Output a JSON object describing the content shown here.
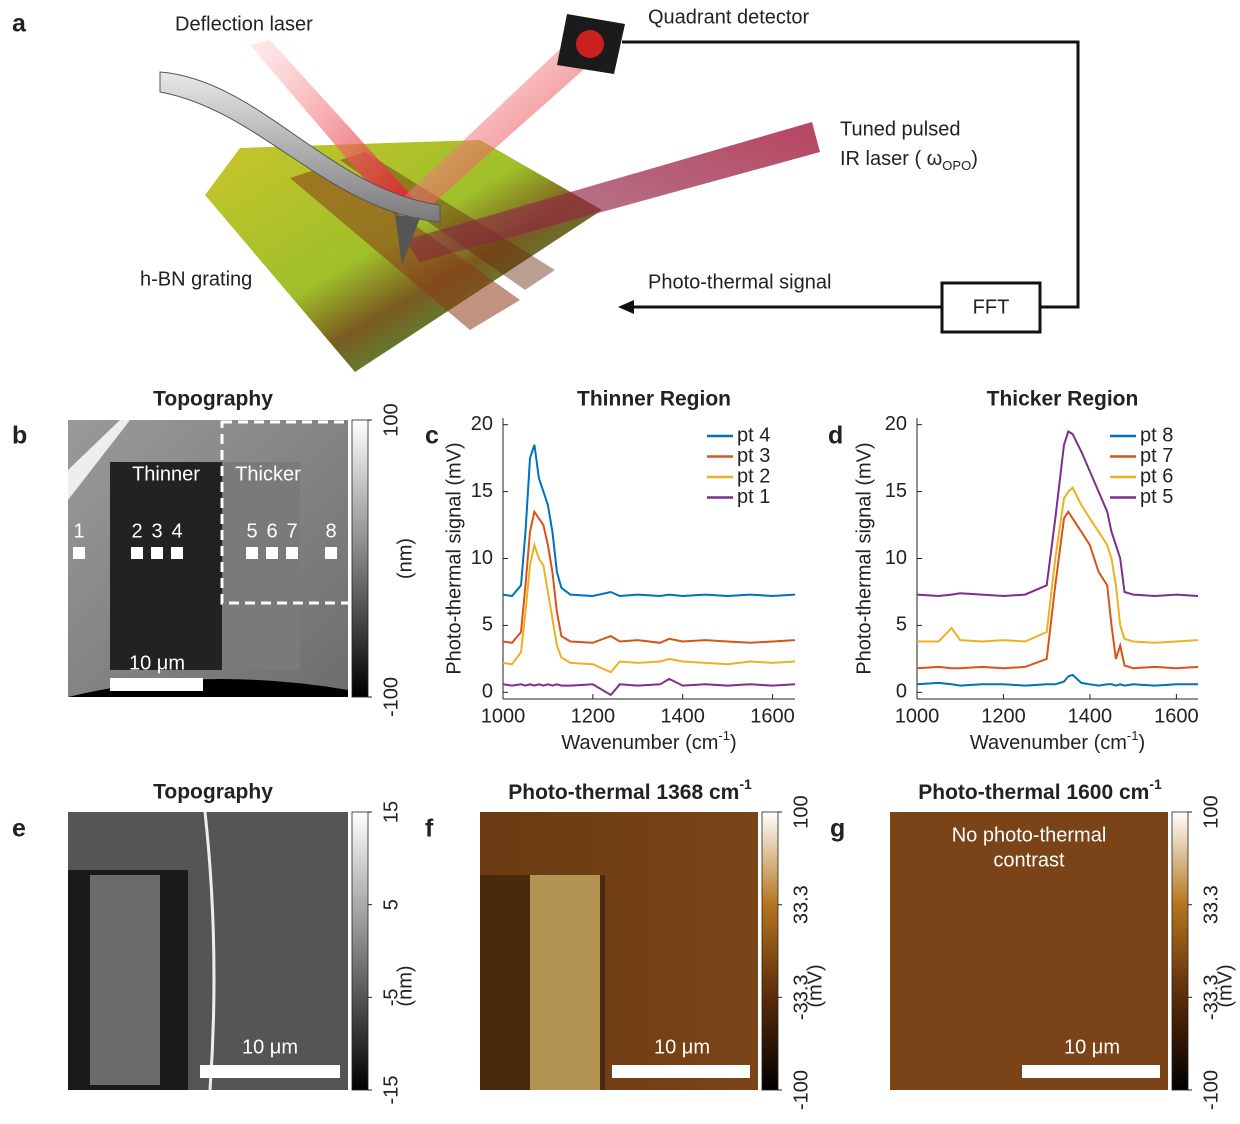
{
  "panel_a": {
    "letter": "a",
    "deflection_laser": "Deflection laser",
    "quadrant_detector": "Quadrant detector",
    "ir_laser_line1": "Tuned pulsed",
    "ir_laser_line2": "IR laser ( ω",
    "ir_laser_sub": "OPO",
    "ir_laser_end": ")",
    "sample": "h-BN grating",
    "signal": "Photo-thermal signal",
    "fft": "FFT"
  },
  "panel_b": {
    "letter": "b",
    "title": "Topography",
    "thinner": "Thinner",
    "thicker": "Thicker",
    "points": [
      "1",
      "2",
      "3",
      "4",
      "5",
      "6",
      "7",
      "8"
    ],
    "scale_bar": "10 μm",
    "colorbar": {
      "lim": [
        -100,
        100
      ],
      "ticks": [
        100,
        -100
      ],
      "label": "(nm)",
      "colors": [
        "#000000",
        "#ffffff"
      ]
    }
  },
  "chart_data": [
    {
      "type": "line",
      "panel_label": "c",
      "title": "Thinner Region",
      "ylabel": "Photo-thermal signal (mV)",
      "xlabel": "Wavenumber (cm",
      "xlabel_sup": "-1",
      "xlabel_end": ")",
      "x": [
        1000,
        1020,
        1040,
        1050,
        1060,
        1070,
        1080,
        1090,
        1100,
        1110,
        1120,
        1130,
        1150,
        1200,
        1240,
        1260,
        1300,
        1350,
        1370,
        1400,
        1450,
        1500,
        1550,
        1600,
        1650
      ],
      "series": [
        {
          "name": "pt 4",
          "color": "#0072bd",
          "values": [
            7.3,
            7.2,
            8,
            12,
            17.5,
            18.5,
            16,
            15,
            14,
            12,
            9,
            7.8,
            7.3,
            7.2,
            7.5,
            7.2,
            7.3,
            7.2,
            7.3,
            7.2,
            7.3,
            7.2,
            7.3,
            7.2,
            7.3
          ]
        },
        {
          "name": "pt 3",
          "color": "#d95319",
          "values": [
            3.8,
            3.7,
            4.5,
            8,
            12,
            13.5,
            13,
            12.5,
            11,
            9,
            6,
            4.2,
            3.8,
            3.7,
            4.2,
            3.8,
            3.9,
            3.7,
            4,
            3.8,
            3.9,
            3.8,
            3.7,
            3.8,
            3.9
          ]
        },
        {
          "name": "pt 2",
          "color": "#edb120",
          "values": [
            2.2,
            2.1,
            3,
            6,
            9.5,
            11,
            10,
            9.5,
            7.5,
            5.5,
            3.5,
            2.6,
            2.2,
            2.1,
            1.5,
            2.3,
            2.2,
            2.3,
            2.5,
            2.3,
            2.2,
            2.1,
            2.3,
            2.2,
            2.3
          ]
        },
        {
          "name": "pt 1",
          "color": "#7e2f8e",
          "values": [
            0.6,
            0.5,
            0.6,
            0.5,
            0.6,
            0.5,
            0.6,
            0.5,
            0.6,
            0.5,
            0.6,
            0.5,
            0.5,
            0.6,
            -0.2,
            0.6,
            0.5,
            0.6,
            1,
            0.5,
            0.6,
            0.5,
            0.6,
            0.5,
            0.6
          ]
        }
      ],
      "xlim": [
        1000,
        1650
      ],
      "ylim": [
        -0.5,
        20.5
      ],
      "xticks": [
        1000,
        1200,
        1400,
        1600
      ],
      "yticks": [
        0,
        5,
        10,
        15,
        20
      ],
      "legend": "upper right"
    },
    {
      "type": "line",
      "panel_label": "d",
      "title": "Thicker Region",
      "ylabel": "Photo-thermal signal (mV)",
      "xlabel": "Wavenumber (cm",
      "xlabel_sup": "-1",
      "xlabel_end": ")",
      "x": [
        1000,
        1050,
        1080,
        1100,
        1150,
        1200,
        1250,
        1300,
        1320,
        1340,
        1350,
        1360,
        1380,
        1400,
        1420,
        1440,
        1450,
        1460,
        1470,
        1480,
        1500,
        1550,
        1600,
        1650
      ],
      "series": [
        {
          "name": "pt 8",
          "color": "#0072bd",
          "values": [
            0.6,
            0.7,
            0.6,
            0.5,
            0.6,
            0.6,
            0.5,
            0.6,
            0.6,
            0.8,
            1.2,
            1.3,
            0.7,
            0.6,
            0.5,
            0.6,
            0.6,
            0.5,
            0.6,
            0.5,
            0.6,
            0.5,
            0.6,
            0.6
          ]
        },
        {
          "name": "pt 7",
          "color": "#d95319",
          "values": [
            1.8,
            1.9,
            1.8,
            1.8,
            1.9,
            1.8,
            1.9,
            2.5,
            8,
            13,
            13.5,
            13,
            12,
            11,
            9,
            8,
            5,
            2.5,
            3.5,
            2,
            1.8,
            1.9,
            1.8,
            1.9
          ]
        },
        {
          "name": "pt 6",
          "color": "#edb120",
          "values": [
            3.8,
            3.8,
            4.8,
            3.9,
            3.8,
            3.9,
            3.8,
            4.5,
            10,
            14.5,
            15,
            15.3,
            14,
            13,
            12,
            11,
            10,
            8,
            5,
            4,
            3.8,
            3.7,
            3.8,
            3.9
          ]
        },
        {
          "name": "pt 5",
          "color": "#7e2f8e",
          "values": [
            7.3,
            7.2,
            7.3,
            7.4,
            7.3,
            7.2,
            7.3,
            8,
            13,
            18.5,
            19.5,
            19.3,
            18,
            16.5,
            15,
            13.5,
            12,
            11,
            10,
            7.5,
            7.3,
            7.2,
            7.3,
            7.2
          ]
        }
      ],
      "xlim": [
        1000,
        1650
      ],
      "ylim": [
        -0.5,
        20.5
      ],
      "xticks": [
        1000,
        1200,
        1400,
        1600
      ],
      "yticks": [
        0,
        5,
        10,
        15,
        20
      ],
      "legend": "upper right"
    }
  ],
  "panel_e": {
    "letter": "e",
    "title": "Topography",
    "scale_bar": "10 μm",
    "colorbar": {
      "lim": [
        -15,
        15
      ],
      "ticks": [
        15,
        5,
        -5,
        -15
      ],
      "label": "(nm)",
      "colors": [
        "#000000",
        "#ffffff"
      ]
    }
  },
  "panel_f": {
    "letter": "f",
    "title": "Photo-thermal 1368 cm",
    "title_sup": "-1",
    "scale_bar": "10 μm",
    "colorbar": {
      "lim": [
        -100,
        100
      ],
      "ticks": [
        100,
        33.3,
        -33.3,
        -100
      ],
      "label": "(mV)",
      "colors": [
        "#000000",
        "#5a2a0a",
        "#b5751e",
        "#ffffff"
      ]
    }
  },
  "panel_g": {
    "letter": "g",
    "title": "Photo-thermal 1600 cm",
    "title_sup": "-1",
    "note_line1": "No photo-thermal",
    "note_line2": "contrast",
    "scale_bar": "10 μm",
    "colorbar": {
      "lim": [
        -100,
        100
      ],
      "ticks": [
        100,
        33.3,
        -33.3,
        -100
      ],
      "label": "(mV)",
      "colors": [
        "#000000",
        "#5a2a0a",
        "#b5751e",
        "#ffffff"
      ]
    }
  }
}
